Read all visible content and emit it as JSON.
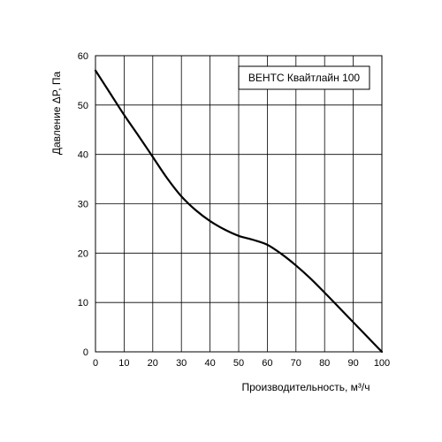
{
  "chart_data": {
    "type": "line",
    "title": "",
    "xlabel": "Производительность, м³/ч",
    "ylabel": "Давление ΔP, Па",
    "xlim": [
      0,
      100
    ],
    "ylim": [
      0,
      60
    ],
    "xticks": [
      0,
      10,
      20,
      30,
      40,
      50,
      60,
      70,
      80,
      90,
      100
    ],
    "yticks": [
      0,
      10,
      20,
      30,
      40,
      50,
      60
    ],
    "grid": true,
    "legend_position": "top-right",
    "series": [
      {
        "name": "ВЕНТС Квайтлайн 100",
        "color": "#000000",
        "x": [
          0,
          5,
          10,
          15,
          20,
          25,
          30,
          35,
          40,
          45,
          50,
          55,
          60,
          65,
          70,
          75,
          80,
          85,
          90,
          95,
          100
        ],
        "y": [
          57,
          52.5,
          48,
          43.8,
          39.5,
          35.2,
          31.5,
          28.7,
          26.5,
          24.8,
          23.5,
          22.7,
          21.7,
          19.8,
          17.5,
          14.9,
          12,
          9,
          6,
          3,
          0
        ]
      }
    ]
  }
}
